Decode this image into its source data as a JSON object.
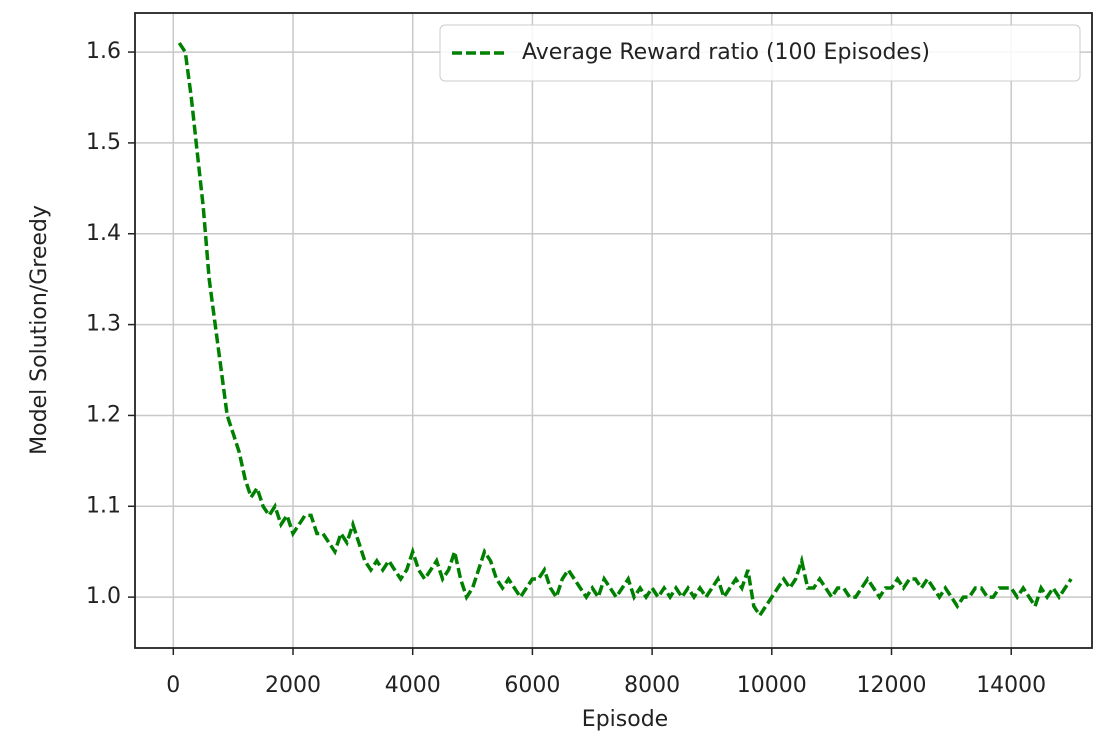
{
  "chart_data": {
    "type": "line",
    "xlabel": "Episode",
    "ylabel": "Model Solution/Greedy",
    "x": [
      100,
      200,
      300,
      400,
      500,
      600,
      700,
      800,
      900,
      1000,
      1100,
      1200,
      1300,
      1400,
      1500,
      1600,
      1700,
      1800,
      1900,
      2000,
      2100,
      2200,
      2300,
      2400,
      2500,
      2600,
      2700,
      2800,
      2900,
      3000,
      3100,
      3200,
      3300,
      3400,
      3500,
      3600,
      3700,
      3800,
      3900,
      4000,
      4100,
      4200,
      4300,
      4400,
      4500,
      4600,
      4700,
      4800,
      4900,
      5000,
      5100,
      5200,
      5300,
      5400,
      5500,
      5600,
      5700,
      5800,
      5900,
      6000,
      6100,
      6200,
      6300,
      6400,
      6500,
      6600,
      6700,
      6800,
      6900,
      7000,
      7100,
      7200,
      7300,
      7400,
      7500,
      7600,
      7700,
      7800,
      7900,
      8000,
      8100,
      8200,
      8300,
      8400,
      8500,
      8600,
      8700,
      8800,
      8900,
      9000,
      9100,
      9200,
      9300,
      9400,
      9500,
      9600,
      9700,
      9800,
      9900,
      10000,
      10100,
      10200,
      10300,
      10400,
      10500,
      10600,
      10700,
      10800,
      10900,
      11000,
      11100,
      11200,
      11300,
      11400,
      11500,
      11600,
      11700,
      11800,
      11900,
      12000,
      12100,
      12200,
      12300,
      12400,
      12500,
      12600,
      12700,
      12800,
      12900,
      13000,
      13100,
      13200,
      13300,
      13400,
      13500,
      13600,
      13700,
      13800,
      13900,
      14000,
      14100,
      14200,
      14300,
      14400,
      14500,
      14600,
      14700,
      14800,
      14900,
      15000
    ],
    "series": [
      {
        "name": "Average Reward ratio (100 Episodes)",
        "color": "#008000",
        "values": [
          1.61,
          1.6,
          1.55,
          1.49,
          1.43,
          1.35,
          1.3,
          1.25,
          1.2,
          1.18,
          1.16,
          1.13,
          1.11,
          1.12,
          1.1,
          1.09,
          1.1,
          1.08,
          1.09,
          1.07,
          1.08,
          1.09,
          1.09,
          1.07,
          1.07,
          1.06,
          1.05,
          1.07,
          1.06,
          1.08,
          1.06,
          1.04,
          1.03,
          1.04,
          1.03,
          1.04,
          1.03,
          1.02,
          1.03,
          1.05,
          1.03,
          1.02,
          1.03,
          1.04,
          1.02,
          1.03,
          1.05,
          1.02,
          1.0,
          1.01,
          1.03,
          1.05,
          1.04,
          1.02,
          1.01,
          1.02,
          1.01,
          1.0,
          1.01,
          1.02,
          1.02,
          1.03,
          1.01,
          1.0,
          1.02,
          1.03,
          1.02,
          1.01,
          1.0,
          1.01,
          1.0,
          1.02,
          1.01,
          1.0,
          1.01,
          1.02,
          1.0,
          1.01,
          1.0,
          1.01,
          1.0,
          1.01,
          1.0,
          1.01,
          1.0,
          1.01,
          1.0,
          1.01,
          1.0,
          1.01,
          1.02,
          1.0,
          1.01,
          1.02,
          1.01,
          1.03,
          0.99,
          0.98,
          0.99,
          1.0,
          1.01,
          1.02,
          1.01,
          1.02,
          1.04,
          1.01,
          1.01,
          1.02,
          1.01,
          1.0,
          1.01,
          1.01,
          1.0,
          1.0,
          1.01,
          1.02,
          1.01,
          1.0,
          1.01,
          1.01,
          1.02,
          1.01,
          1.02,
          1.02,
          1.01,
          1.02,
          1.01,
          1.0,
          1.01,
          1.0,
          0.99,
          1.0,
          1.0,
          1.01,
          1.01,
          1.0,
          1.0,
          1.01,
          1.01,
          1.01,
          1.0,
          1.01,
          1.0,
          0.99,
          1.01,
          1.0,
          1.01,
          1.0,
          1.01,
          1.02
        ]
      }
    ],
    "xlim": [
      -640,
      15350
    ],
    "xticks": [
      0,
      2000,
      4000,
      6000,
      8000,
      10000,
      12000,
      14000
    ],
    "ylim": [
      0.944,
      1.643
    ],
    "yticks": [
      {
        "value": 1,
        "label": "1.0"
      },
      1.1,
      1.2,
      1.3,
      1.4,
      1.5,
      1.6
    ],
    "grid": true,
    "legend": "upper right"
  }
}
